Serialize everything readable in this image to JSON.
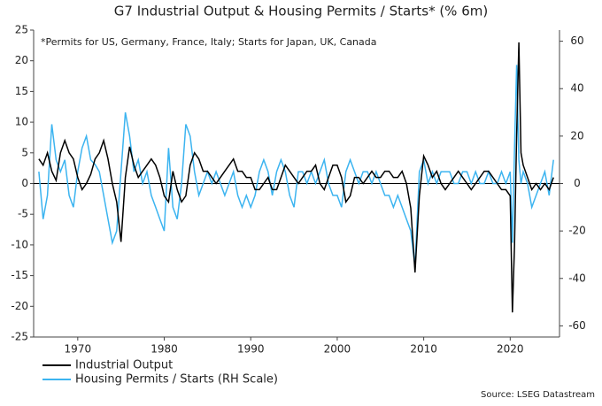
{
  "chart_data": {
    "type": "line",
    "title": "G7 Industrial Output & Housing Permits / Starts* (% 6m)",
    "annotation": "*Permits for US, Germany, France, Italy; Starts for Japan, UK, Canada",
    "source": "Source: LSEG Datastream",
    "xlim": [
      1964.9,
      2025.7
    ],
    "xticks": [
      1970,
      1980,
      1990,
      2000,
      2010,
      2020
    ],
    "ylim": [
      -25,
      25
    ],
    "yticks": [
      -25,
      -20,
      -15,
      -10,
      -5,
      0,
      5,
      10,
      15,
      20,
      25
    ],
    "y2lim": [
      -64.7,
      64.7
    ],
    "y2ticks": [
      -60,
      -40,
      -20,
      0,
      20,
      40,
      60
    ],
    "x": [
      1965.5,
      1966,
      1966.5,
      1967,
      1967.5,
      1968,
      1968.5,
      1969,
      1969.5,
      1970,
      1970.5,
      1971,
      1971.5,
      1972,
      1972.5,
      1973,
      1973.5,
      1974,
      1974.5,
      1975,
      1975.5,
      1976,
      1976.5,
      1977,
      1977.5,
      1978,
      1978.5,
      1979,
      1979.5,
      1980,
      1980.5,
      1981,
      1981.5,
      1982,
      1982.5,
      1983,
      1983.5,
      1984,
      1984.5,
      1985,
      1985.5,
      1986,
      1986.5,
      1987,
      1987.5,
      1988,
      1988.5,
      1989,
      1989.5,
      1990,
      1990.5,
      1991,
      1991.5,
      1992,
      1992.5,
      1993,
      1993.5,
      1994,
      1994.5,
      1995,
      1995.5,
      1996,
      1996.5,
      1997,
      1997.5,
      1998,
      1998.5,
      1999,
      1999.5,
      2000,
      2000.5,
      2001,
      2001.5,
      2002,
      2002.5,
      2003,
      2003.5,
      2004,
      2004.5,
      2005,
      2005.5,
      2006,
      2006.5,
      2007,
      2007.5,
      2008,
      2008.5,
      2009,
      2009.5,
      2010,
      2010.5,
      2011,
      2011.5,
      2012,
      2012.5,
      2013,
      2013.5,
      2014,
      2014.5,
      2015,
      2015.5,
      2016,
      2016.5,
      2017,
      2017.5,
      2018,
      2018.5,
      2019,
      2019.5,
      2020,
      2020.25,
      2020.5,
      2020.75,
      2021,
      2021.25,
      2021.5,
      2022,
      2022.5,
      2023,
      2023.5,
      2024,
      2024.5,
      2025
    ],
    "series": [
      {
        "name": "Industrial Output",
        "color": "#000000",
        "axis": "y",
        "values": [
          4,
          3,
          5,
          2,
          0.5,
          5,
          7,
          5,
          4,
          1,
          -1,
          0,
          1.5,
          4,
          5,
          7,
          4,
          0,
          -3,
          -9.5,
          1,
          6,
          3,
          1,
          2,
          3,
          4,
          3,
          1,
          -2,
          -3,
          2,
          -1,
          -3,
          -2,
          3,
          5,
          4,
          2,
          2,
          1,
          0,
          1,
          2,
          3,
          4,
          2,
          2,
          1,
          1,
          -1,
          -1,
          0,
          1,
          -1,
          -1,
          1,
          3,
          2,
          1,
          0,
          1,
          2,
          2,
          3,
          0,
          -1,
          1,
          3,
          3,
          1,
          -3,
          -2,
          1,
          1,
          0,
          1,
          2,
          1,
          1,
          2,
          2,
          1,
          1,
          2,
          0,
          -4,
          -14.5,
          -2,
          4.5,
          3,
          1,
          2,
          0,
          -1,
          0,
          1,
          2,
          1,
          0,
          -1,
          0,
          1,
          2,
          2,
          1,
          0,
          -1,
          -1,
          -2,
          -21,
          -10,
          8,
          23,
          5,
          3,
          1,
          -1,
          0,
          -1,
          0,
          -1,
          1
        ]
      },
      {
        "name": "Housing Permits / Starts (RH Scale)",
        "color": "#3cb4f0",
        "axis": "y2",
        "values": [
          5,
          -15,
          -5,
          25,
          10,
          5,
          10,
          -5,
          -10,
          5,
          15,
          20,
          10,
          8,
          5,
          -5,
          -15,
          -25,
          -20,
          5,
          30,
          20,
          5,
          10,
          0,
          5,
          -5,
          -10,
          -15,
          -20,
          15,
          -10,
          -15,
          0,
          25,
          20,
          5,
          -5,
          0,
          5,
          0,
          5,
          0,
          -5,
          0,
          5,
          -5,
          -10,
          -5,
          -10,
          -5,
          5,
          10,
          5,
          -5,
          5,
          10,
          5,
          -5,
          -10,
          5,
          5,
          0,
          5,
          0,
          5,
          10,
          0,
          -5,
          -5,
          -10,
          5,
          10,
          5,
          0,
          5,
          5,
          0,
          5,
          0,
          -5,
          -5,
          -10,
          -5,
          -10,
          -15,
          -20,
          -35,
          5,
          10,
          0,
          5,
          0,
          5,
          5,
          5,
          0,
          0,
          5,
          5,
          0,
          5,
          0,
          0,
          5,
          0,
          0,
          5,
          0,
          5,
          -25,
          15,
          50,
          10,
          0,
          5,
          0,
          -10,
          -5,
          0,
          5,
          -5,
          10
        ]
      }
    ]
  }
}
